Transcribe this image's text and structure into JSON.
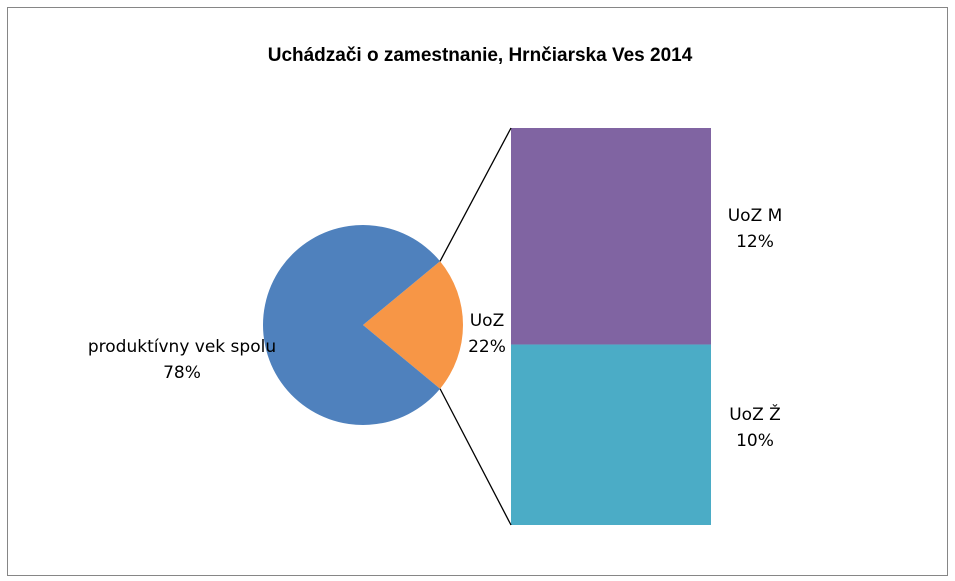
{
  "chart_data": {
    "type": "pie",
    "title": "Uchádzači o zamestnanie, Hrnčiarska Ves 2014",
    "categories": [
      "produktívny vek spolu",
      "UoZ"
    ],
    "values": [
      78,
      22
    ],
    "value_labels": [
      "78%",
      "22%"
    ],
    "colors": [
      "#4f81bd",
      "#f79646"
    ],
    "breakdown": {
      "categories": [
        "UoZ M",
        "UoZ Ž"
      ],
      "values": [
        12,
        10
      ],
      "value_labels": [
        "12%",
        "10%"
      ],
      "colors": [
        "#8064a2",
        "#4bacc6"
      ]
    }
  }
}
